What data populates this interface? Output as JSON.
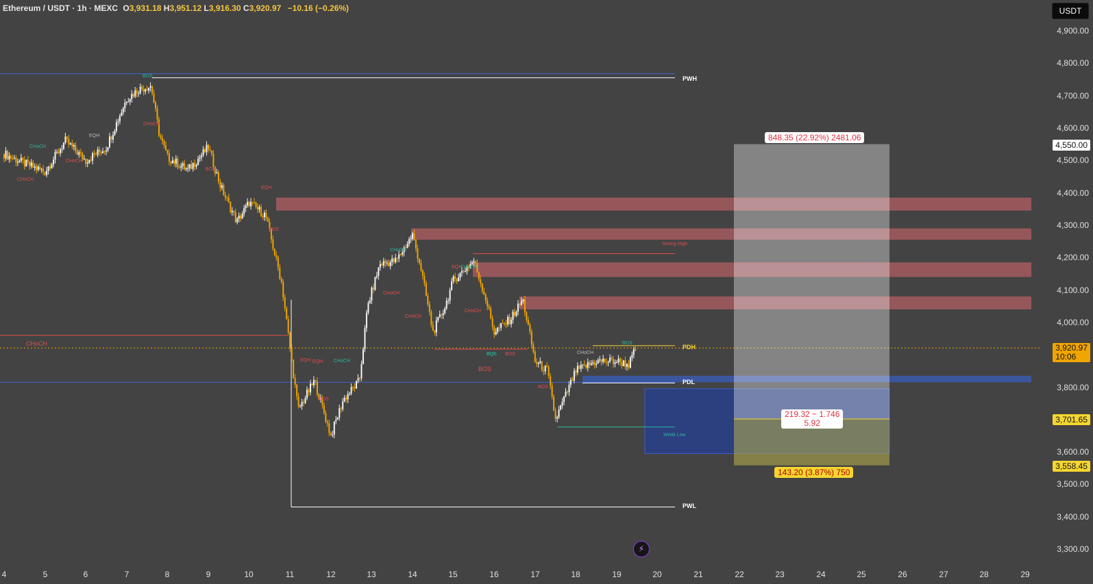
{
  "header": {
    "symbol": "Ethereum / USDT · 1h · MEXC",
    "open_label": "O",
    "open": "3,931.18",
    "high_label": "H",
    "high": "3,951.12",
    "low_label": "L",
    "low": "3,916.30",
    "close_label": "C",
    "close": "3,920.97",
    "change": "−10.16 (−0.26%)"
  },
  "currency_button": "USDT",
  "price_axis": [
    "4,900.00",
    "4,800.00",
    "4,700.00",
    "4,600.00",
    "4,500.00",
    "4,400.00",
    "4,300.00",
    "4,200.00",
    "4,100.00",
    "4,000.00",
    "3,800.00",
    "3,600.00",
    "3,500.00",
    "3,400.00",
    "3,300.00"
  ],
  "price_labels": {
    "target": "4,550.00",
    "current": "3,920.97",
    "countdown": "10:06",
    "entry": "3,701.65",
    "stop": "3,558.45"
  },
  "time_axis": [
    "4",
    "5",
    "6",
    "7",
    "8",
    "9",
    "10",
    "11",
    "12",
    "13",
    "14",
    "15",
    "16",
    "17",
    "18",
    "19",
    "20",
    "21",
    "22",
    "23",
    "24",
    "25",
    "26",
    "27",
    "28",
    "29"
  ],
  "levels": {
    "pwh": "PWH",
    "pdh": "PDH",
    "pdl": "PDL",
    "pwl": "PWL"
  },
  "structure_labels": {
    "choch_big": "CHoCH",
    "bos_big": "BOS",
    "strong_high": "Strong High",
    "weak_low": "Weak Low",
    "small": [
      "CHoCH",
      "CHoCH",
      "CHoCH",
      "EQH",
      "BOS",
      "BOS",
      "CHoCH",
      "BOS",
      "EQH",
      "BOS",
      "EQH",
      "EQH",
      "CHoCH",
      "BOS",
      "CHoCH",
      "CHoCH",
      "CHoCH",
      "EQH",
      "CHoCH",
      "CHoCH",
      "EQL",
      "BOS",
      "BOS",
      "CHoCH",
      "BOS"
    ]
  },
  "position_tool": {
    "target_label": "848.35 (22.92%) 2481.06",
    "ratio_label": "219.32 ~ 1.746",
    "ratio_sub": "5.92",
    "stop_label": "143.20 (3.87%) 750"
  },
  "colors": {
    "bull": "#f5f5f5",
    "bear": "#f0a500",
    "supply_zone": "#a05a5e",
    "demand_zone": "#2a3f85",
    "pdl_zone": "#3a5aa8"
  },
  "chart_data": {
    "type": "candlestick",
    "symbol": "ETH/USDT",
    "interval": "1h",
    "exchange": "MEXC",
    "ylim": [
      3300,
      4950
    ],
    "x": [
      "4",
      "5",
      "6",
      "7",
      "8",
      "9",
      "10",
      "11",
      "12",
      "13",
      "14",
      "15",
      "16",
      "17",
      "18",
      "19",
      "20",
      "21",
      "22",
      "23",
      "24",
      "25",
      "26",
      "27",
      "28",
      "29"
    ],
    "price_path": [
      [
        "4",
        4520
      ],
      [
        "4.5",
        4490
      ],
      [
        "5",
        4465
      ],
      [
        "5.5",
        4560
      ],
      [
        "6",
        4500
      ],
      [
        "6.5",
        4540
      ],
      [
        "7",
        4690
      ],
      [
        "7.3",
        4720
      ],
      [
        "7.6",
        4730
      ],
      [
        "7.8",
        4580
      ],
      [
        "8",
        4510
      ],
      [
        "8.5",
        4470
      ],
      [
        "9",
        4540
      ],
      [
        "9.3",
        4420
      ],
      [
        "9.7",
        4310
      ],
      [
        "10",
        4370
      ],
      [
        "10.4",
        4330
      ],
      [
        "10.8",
        4120
      ],
      [
        "11",
        3920
      ],
      [
        "11.2",
        3730
      ],
      [
        "11.6",
        3820
      ],
      [
        "12",
        3650
      ],
      [
        "12.3",
        3760
      ],
      [
        "12.7",
        3820
      ],
      [
        "12.9",
        4050
      ],
      [
        "13.2",
        4180
      ],
      [
        "13.6",
        4190
      ],
      [
        "14",
        4270
      ],
      [
        "14.2",
        4170
      ],
      [
        "14.5",
        3970
      ],
      [
        "14.8",
        4050
      ],
      [
        "15",
        4130
      ],
      [
        "15.5",
        4190
      ],
      [
        "15.8",
        4070
      ],
      [
        "16",
        3970
      ],
      [
        "16.4",
        4010
      ],
      [
        "16.7",
        4070
      ],
      [
        "17",
        3880
      ],
      [
        "17.3",
        3850
      ],
      [
        "17.5",
        3700
      ],
      [
        "17.8",
        3790
      ],
      [
        "18",
        3850
      ],
      [
        "18.5",
        3880
      ],
      [
        "19",
        3880
      ],
      [
        "19.3",
        3870
      ],
      [
        "19.5",
        3930
      ]
    ],
    "horizontal_levels": {
      "PWH": 4755,
      "PDH": 3928,
      "PDL": 3815,
      "PWL": 3430,
      "Strong High": 4212,
      "CHoCH": 3960,
      "Weak Low": 3677
    },
    "supply_zones": [
      [
        4345,
        4385
      ],
      [
        4255,
        4290
      ],
      [
        4140,
        4185
      ],
      [
        4040,
        4080
      ]
    ],
    "pdl_zone": [
      3815,
      3835
    ],
    "long_position": {
      "entry": 3701.65,
      "target": 4550.0,
      "stop": 3558.45,
      "ratio": "219.32 ~ 1.746",
      "qty": "5.92",
      "target_label": "848.35 (22.92%) 2481.06",
      "stop_label": "143.20 (3.87%) 750"
    },
    "last_price": 3920.97
  }
}
